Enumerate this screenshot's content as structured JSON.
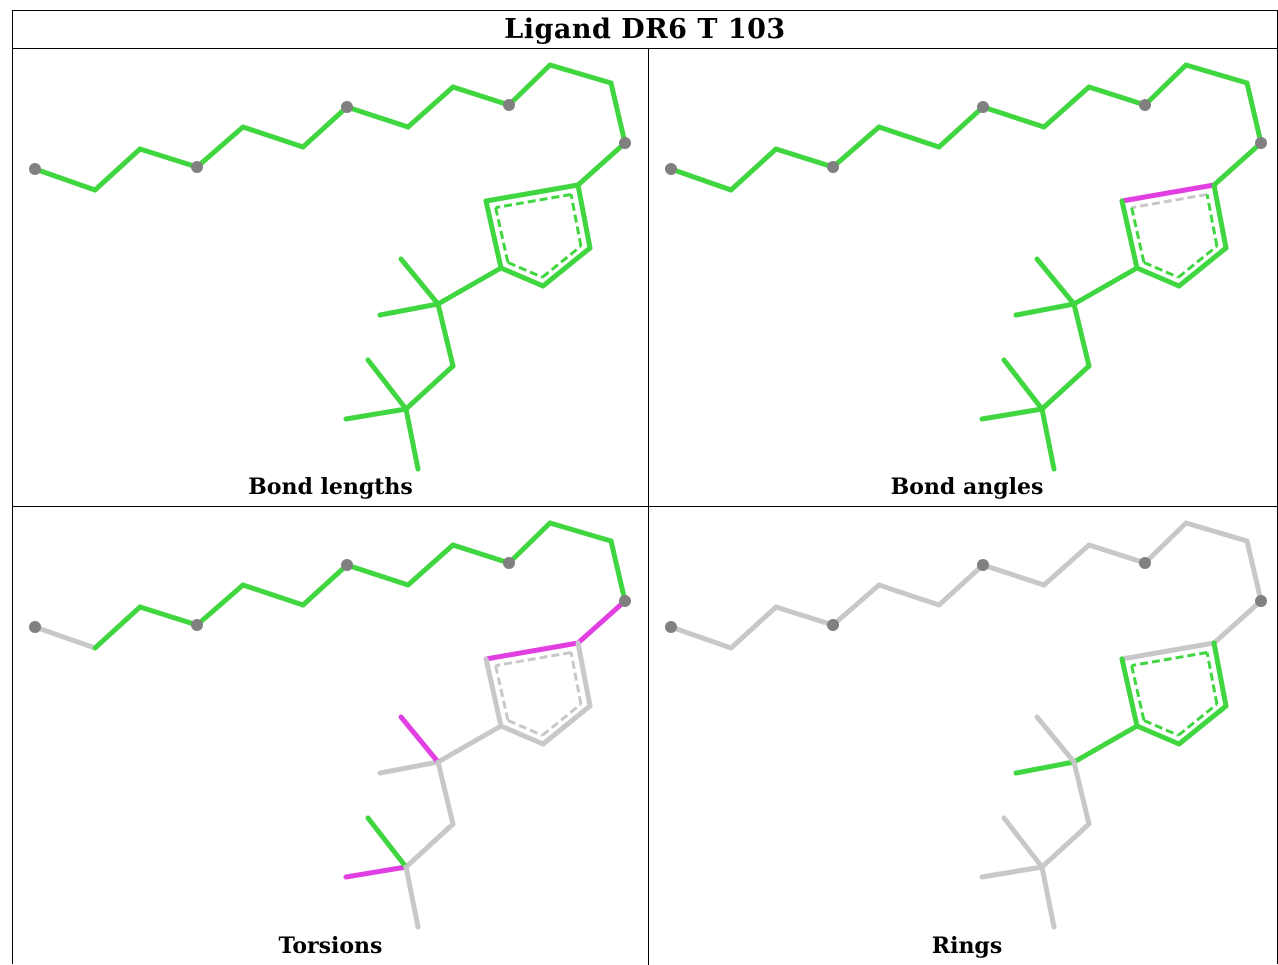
{
  "title": "Ligand DR6 T 103",
  "colors": {
    "ok": "#3fd63f",
    "flagged": "#e23fe2",
    "not_checked": "#c8c8c8",
    "atom": "#808080"
  },
  "panels": [
    {
      "caption": "Bond lengths",
      "bond_status": [
        "ok",
        "ok",
        "ok",
        "ok",
        "ok",
        "ok",
        "ok",
        "ok",
        "ok",
        "ok",
        "ok",
        "ok",
        "ok",
        "ok",
        "ok",
        "ok",
        "ok",
        "ok",
        "ok",
        "ok",
        "ok",
        "ok",
        "ok",
        "ok",
        "ok",
        "ok",
        "ok",
        "ok",
        "ok"
      ]
    },
    {
      "caption": "Bond angles",
      "bond_status": [
        "ok",
        "ok",
        "ok",
        "ok",
        "ok",
        "ok",
        "ok",
        "ok",
        "ok",
        "ok",
        "ok",
        "ok",
        "ok",
        "flagged",
        "flagged",
        "ok",
        "ok",
        "ok",
        "ok",
        "ok",
        "ok",
        "ok",
        "ok",
        "ok",
        "ok",
        "ok",
        "ok",
        "ok",
        "ok"
      ]
    },
    {
      "caption": "Torsions",
      "bond_status": [
        "not_checked",
        "ok",
        "ok",
        "ok",
        "ok",
        "ok",
        "ok",
        "ok",
        "ok",
        "ok",
        "ok",
        "ok",
        "flagged",
        "flagged",
        "flagged",
        "not_checked",
        "not_checked",
        "not_checked",
        "not_checked",
        "not_checked",
        "not_checked",
        "flagged",
        "not_checked",
        "not_checked",
        "flagged",
        "ok",
        "not_checked",
        "not_checked",
        "not_checked"
      ]
    },
    {
      "caption": "Rings",
      "bond_status": [
        "not_checked",
        "not_checked",
        "not_checked",
        "not_checked",
        "not_checked",
        "not_checked",
        "not_checked",
        "not_checked",
        "not_checked",
        "not_checked",
        "not_checked",
        "not_checked",
        "not_checked",
        "not_checked",
        "not_checked",
        "ok",
        "ok",
        "ok",
        "ok",
        "ok",
        "ok",
        "not_checked",
        "not_checked",
        "not_checked",
        "not_checked",
        "not_checked",
        "not_checked",
        "not_checked",
        "not_checked"
      ]
    }
  ]
}
